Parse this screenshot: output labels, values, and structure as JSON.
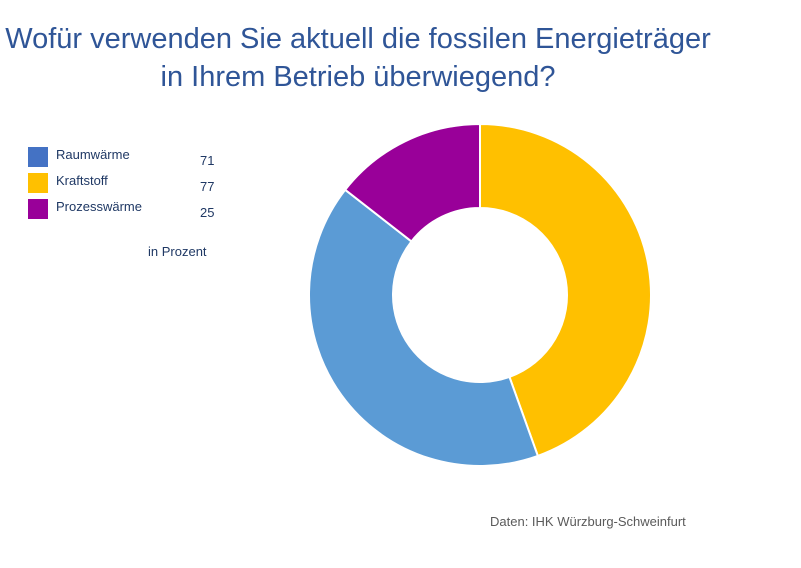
{
  "title_line1": "Wofür verwenden Sie aktuell die fossilen Energieträger",
  "title_line2": "in Ihrem Betrieb überwiegend?",
  "unit_note": "in Prozent",
  "source": "Daten: IHK Würzburg-Schweinfurt",
  "chart_data": {
    "type": "pie",
    "subtype": "donut",
    "legend_placement": "left",
    "categories": [
      "Raumwärme",
      "Kraftstoff",
      "Prozesswärme"
    ],
    "values": [
      71,
      77,
      25
    ],
    "colors": [
      "#5B9BD5",
      "#FFC000",
      "#990099"
    ],
    "legend_colors": [
      "#4472C4",
      "#FFC000",
      "#990099"
    ],
    "slice_order": [
      "Kraftstoff",
      "Raumwärme",
      "Prozesswärme"
    ]
  }
}
